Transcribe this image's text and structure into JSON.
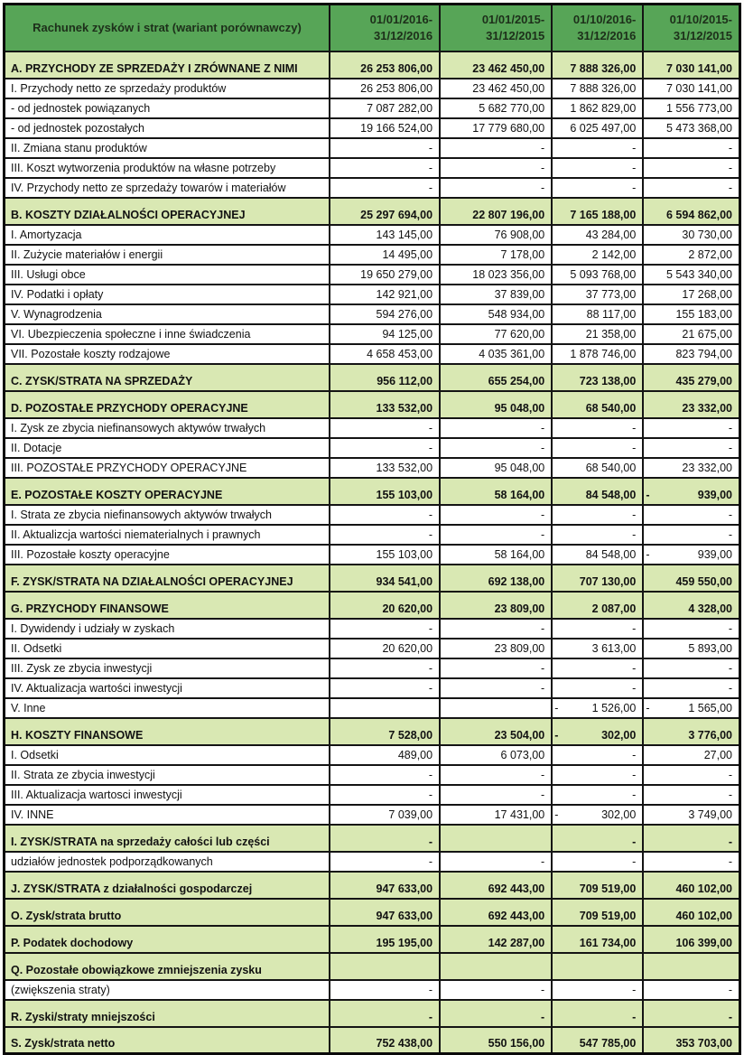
{
  "document": {
    "title": "Rachunek zysków i strat (wariant porównawczy)",
    "columns": [
      "01/01/2016-\n31/12/2016",
      "01/01/2015-\n31/12/2015",
      "01/10/2016-\n31/12/2016",
      "01/10/2015-\n31/12/2015"
    ],
    "colors": {
      "header_green": "#57a557",
      "section_green": "#d9e8b3",
      "border": "#141414"
    },
    "rows": [
      {
        "type": "section",
        "label": "A. PRZYCHODY ZE SPRZEDAŻY I ZRÓWNANE Z NIMI",
        "values": [
          "26 253 806,00",
          "23 462 450,00",
          "7 888 326,00",
          "7 030 141,00"
        ]
      },
      {
        "type": "item",
        "label": "I.    Przychody netto ze sprzedaży produktów",
        "values": [
          "26 253 806,00",
          "23 462 450,00",
          "7 888 326,00",
          "7 030 141,00"
        ]
      },
      {
        "type": "item",
        "label": "- od jednostek powiązanych",
        "values": [
          "7 087 282,00",
          "5 682 770,00",
          "1 862 829,00",
          "1 556 773,00"
        ]
      },
      {
        "type": "item",
        "label": "- od jednostek pozostałych",
        "values": [
          "19 166 524,00",
          "17 779 680,00",
          "6 025 497,00",
          "5 473 368,00"
        ]
      },
      {
        "type": "item",
        "label": "II.   Zmiana stanu produktów",
        "values": [
          "-",
          "-",
          "-",
          "-"
        ]
      },
      {
        "type": "item",
        "label": "III. Koszt wytworzenia produktów na własne potrzeby",
        "values": [
          "-",
          "-",
          "-",
          "-"
        ]
      },
      {
        "type": "item",
        "label": "IV.  Przychody netto ze sprzedaży towarów i materiałów",
        "values": [
          "-",
          "-",
          "-",
          "-"
        ]
      },
      {
        "type": "section",
        "label": "B. KOSZTY DZIAŁALNOŚCI OPERACYJNEJ",
        "values": [
          "25 297 694,00",
          "22 807 196,00",
          "7 165 188,00",
          "6 594 862,00"
        ]
      },
      {
        "type": "item",
        "label": "I.   Amortyzacja",
        "values": [
          "143 145,00",
          "76 908,00",
          "43 284,00",
          "30 730,00"
        ]
      },
      {
        "type": "item",
        "label": "II.  Zużycie materiałów i energii",
        "values": [
          "14 495,00",
          "7 178,00",
          "2 142,00",
          "2 872,00"
        ]
      },
      {
        "type": "item",
        "label": "III. Usługi obce",
        "values": [
          "19 650 279,00",
          "18 023 356,00",
          "5 093 768,00",
          "5 543 340,00"
        ]
      },
      {
        "type": "item",
        "label": "IV.  Podatki i opłaty",
        "values": [
          "142 921,00",
          "37 839,00",
          "37 773,00",
          "17 268,00"
        ]
      },
      {
        "type": "item",
        "label": "V.   Wynagrodzenia",
        "values": [
          "594 276,00",
          "548 934,00",
          "88 117,00",
          "155 183,00"
        ]
      },
      {
        "type": "item",
        "label": "VI.  Ubezpieczenia społeczne i inne świadczenia",
        "values": [
          "94 125,00",
          "77 620,00",
          "21 358,00",
          "21 675,00"
        ]
      },
      {
        "type": "item",
        "label": "VII. Pozostałe koszty rodzajowe",
        "values": [
          "4 658 453,00",
          "4 035 361,00",
          "1 878 746,00",
          "823 794,00"
        ]
      },
      {
        "type": "section",
        "label": "C. ZYSK/STRATA NA SPRZEDAŻY",
        "values": [
          "956 112,00",
          "655 254,00",
          "723 138,00",
          "435 279,00"
        ]
      },
      {
        "type": "section",
        "label": "D. POZOSTAŁE PRZYCHODY OPERACYJNE",
        "values": [
          "133 532,00",
          "95 048,00",
          "68 540,00",
          "23 332,00"
        ]
      },
      {
        "type": "item",
        "label": "I. Zysk ze zbycia niefinansowych aktywów trwałych",
        "values": [
          "-",
          "-",
          "-",
          "-"
        ]
      },
      {
        "type": "item",
        "label": "II. Dotacje",
        "values": [
          "-",
          "-",
          "-",
          "-"
        ]
      },
      {
        "type": "item",
        "label": "III.  POZOSTAŁE PRZYCHODY OPERACYJNE",
        "values": [
          "133 532,00",
          "95 048,00",
          "68 540,00",
          "23 332,00"
        ]
      },
      {
        "type": "section",
        "label": "E. POZOSTAŁE KOSZTY OPERACYJNE",
        "values": [
          "155 103,00",
          "58 164,00",
          "84 548,00",
          "- 939,00"
        ]
      },
      {
        "type": "item",
        "label": "I.   Strata ze zbycia niefinansowych aktywów trwałych",
        "values": [
          "-",
          "-",
          "-",
          "-"
        ]
      },
      {
        "type": "item",
        "label": "II. Aktualizcja wartości niematerialnych i prawnych",
        "values": [
          "-",
          "-",
          "-",
          "-"
        ]
      },
      {
        "type": "item",
        "label": "III.  Pozostałe koszty operacyjne",
        "values": [
          "155 103,00",
          "58 164,00",
          "84 548,00",
          "- 939,00"
        ]
      },
      {
        "type": "section",
        "label": "F. ZYSK/STRATA NA DZIAŁALNOŚCI OPERACYJNEJ",
        "values": [
          "934 541,00",
          "692 138,00",
          "707 130,00",
          "459 550,00"
        ]
      },
      {
        "type": "section",
        "label": "G. PRZYCHODY FINANSOWE",
        "values": [
          "20 620,00",
          "23 809,00",
          "2 087,00",
          "4 328,00"
        ]
      },
      {
        "type": "item",
        "label": "I. Dywidendy i udziały w zyskach",
        "values": [
          "-",
          "-",
          "-",
          "-"
        ]
      },
      {
        "type": "item",
        "label": "II. Odsetki",
        "values": [
          "20 620,00",
          "23 809,00",
          "3 613,00",
          "5 893,00"
        ]
      },
      {
        "type": "item",
        "label": "III. Zysk ze zbycia inwestycji",
        "values": [
          "-",
          "-",
          "-",
          "-"
        ]
      },
      {
        "type": "item",
        "label": "IV. Aktualizacja wartości inwestycji",
        "values": [
          "-",
          "-",
          "-",
          "-"
        ]
      },
      {
        "type": "item",
        "label": "V. Inne",
        "values": [
          "",
          "",
          "- 1 526,00",
          "- 1 565,00"
        ]
      },
      {
        "type": "section",
        "label": "H. KOSZTY FINANSOWE",
        "values": [
          "7 528,00",
          "23 504,00",
          "- 302,00",
          "3 776,00"
        ]
      },
      {
        "type": "item",
        "label": "I.   Odsetki",
        "values": [
          "489,00",
          "6 073,00",
          "-",
          "27,00"
        ]
      },
      {
        "type": "item",
        "label": "II. Strata ze zbycia inwestycji",
        "values": [
          "-",
          "-",
          "-",
          "-"
        ]
      },
      {
        "type": "item",
        "label": "III. Aktualizacja wartosci inwestycji",
        "values": [
          "-",
          "-",
          "-",
          "-"
        ]
      },
      {
        "type": "item",
        "label": "IV.  INNE",
        "values": [
          "7 039,00",
          "17 431,00",
          "- 302,00",
          "3 749,00"
        ]
      },
      {
        "type": "section",
        "label": "I. ZYSK/STRATA na sprzedaży całości lub części",
        "values": [
          "-",
          "",
          "-",
          "-"
        ]
      },
      {
        "type": "item",
        "label": "udziałów jednostek podporządkowanych",
        "values": [
          "-",
          "-",
          "-",
          "-"
        ]
      },
      {
        "type": "section",
        "label": "J. ZYSK/STRATA z działalności gospodarczej",
        "values": [
          "947 633,00",
          "692 443,00",
          "709 519,00",
          "460 102,00"
        ]
      },
      {
        "type": "section",
        "label": "O. Zysk/strata brutto",
        "values": [
          "947 633,00",
          "692 443,00",
          "709 519,00",
          "460 102,00"
        ]
      },
      {
        "type": "section",
        "label": "P. Podatek dochodowy",
        "values": [
          "195 195,00",
          "142 287,00",
          "161 734,00",
          "106 399,00"
        ]
      },
      {
        "type": "section",
        "label": "Q. Pozostałe obowiązkowe zmniejszenia zysku",
        "values": [
          "",
          "",
          "",
          ""
        ]
      },
      {
        "type": "item",
        "label": "(zwiększenia straty)",
        "values": [
          "-",
          "-",
          "-",
          "-"
        ]
      },
      {
        "type": "section",
        "label": "R. Zyski/straty mniejszości",
        "values": [
          "-",
          "-",
          "-",
          "-"
        ]
      },
      {
        "type": "section",
        "label": "S. Zysk/strata netto",
        "values": [
          "752 438,00",
          "550 156,00",
          "547 785,00",
          "353 703,00"
        ]
      }
    ]
  }
}
